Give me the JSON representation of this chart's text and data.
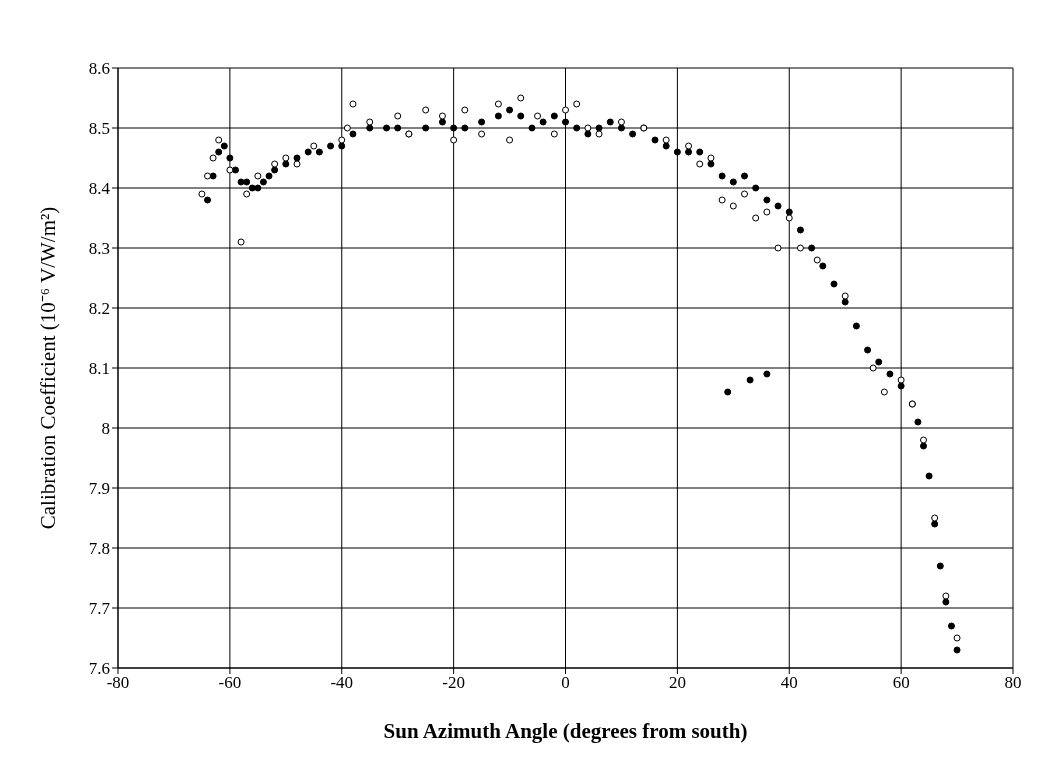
{
  "chart_data": {
    "type": "scatter",
    "xlabel": "Sun Azimuth Angle (degrees from south)",
    "ylabel": "Calibration Coefficient (10⁻⁶ V/W/m²)",
    "xlim": [
      -80,
      80
    ],
    "xticks": [
      -80,
      -60,
      -40,
      -20,
      0,
      20,
      40,
      60,
      80
    ],
    "ylim": [
      7.6,
      8.6
    ],
    "yticks": [
      7.6,
      7.7,
      7.8,
      7.9,
      8,
      8.1,
      8.2,
      8.3,
      8.4,
      8.5,
      8.6
    ],
    "grid": true,
    "marker": "circle",
    "series": [
      {
        "color": "#000000",
        "x": [
          -64,
          -63,
          -62,
          -61,
          -60,
          -59,
          -58,
          -57,
          -56,
          -55,
          -54,
          -53,
          -52,
          -50,
          -48,
          -46,
          -44,
          -42,
          -40,
          -38,
          -35,
          -32,
          -30,
          -28,
          -25,
          -22,
          -20,
          -18,
          -15,
          -12,
          -10,
          -8,
          -6,
          -4,
          -2,
          0,
          2,
          4,
          6,
          8,
          10,
          12,
          14,
          16,
          18,
          20,
          22,
          24,
          26,
          28,
          29,
          30,
          32,
          33,
          34,
          36,
          36,
          38,
          40,
          42,
          44,
          46,
          48,
          50,
          52,
          54,
          56,
          58,
          60,
          62,
          63,
          64,
          65,
          66,
          67,
          68,
          69,
          70
        ],
        "values": [
          8.38,
          8.42,
          8.46,
          8.47,
          8.45,
          8.43,
          8.41,
          8.41,
          8.4,
          8.4,
          8.41,
          8.42,
          8.43,
          8.44,
          8.45,
          8.46,
          8.46,
          8.47,
          8.47,
          8.49,
          8.5,
          8.5,
          8.5,
          8.49,
          8.5,
          8.51,
          8.5,
          8.5,
          8.51,
          8.52,
          8.53,
          8.52,
          8.5,
          8.51,
          8.52,
          8.51,
          8.5,
          8.49,
          8.5,
          8.51,
          8.5,
          8.49,
          8.5,
          8.48,
          8.47,
          8.46,
          8.46,
          8.46,
          8.44,
          8.42,
          8.06,
          8.41,
          8.42,
          8.08,
          8.4,
          8.38,
          8.09,
          8.37,
          8.36,
          8.33,
          8.3,
          8.27,
          8.24,
          8.21,
          8.17,
          8.13,
          8.11,
          8.09,
          8.07,
          8.04,
          8.01,
          7.97,
          7.92,
          7.84,
          7.77,
          7.71,
          7.67,
          7.63
        ]
      },
      {
        "color": "#ffffff",
        "x": [
          -65,
          -64,
          -63,
          -62,
          -60,
          -58,
          -57,
          -55,
          -52,
          -50,
          -48,
          -45,
          -40,
          -39,
          -38,
          -35,
          -30,
          -28,
          -25,
          -22,
          -20,
          -18,
          -15,
          -12,
          -10,
          -8,
          -5,
          -2,
          0,
          2,
          4,
          6,
          10,
          14,
          18,
          22,
          24,
          26,
          28,
          30,
          32,
          34,
          36,
          38,
          40,
          42,
          45,
          50,
          55,
          57,
          60,
          62,
          64,
          66,
          68,
          70
        ],
        "values": [
          8.39,
          8.42,
          8.45,
          8.48,
          8.43,
          8.31,
          8.39,
          8.42,
          8.44,
          8.45,
          8.44,
          8.47,
          8.48,
          8.5,
          8.54,
          8.51,
          8.52,
          8.49,
          8.53,
          8.52,
          8.48,
          8.53,
          8.49,
          8.54,
          8.48,
          8.55,
          8.52,
          8.49,
          8.53,
          8.54,
          8.5,
          8.49,
          8.51,
          8.5,
          8.48,
          8.47,
          8.44,
          8.45,
          8.38,
          8.37,
          8.39,
          8.35,
          8.36,
          8.3,
          8.35,
          8.3,
          8.28,
          8.22,
          8.1,
          8.06,
          8.08,
          8.04,
          7.98,
          7.85,
          7.72,
          7.65
        ]
      }
    ]
  }
}
